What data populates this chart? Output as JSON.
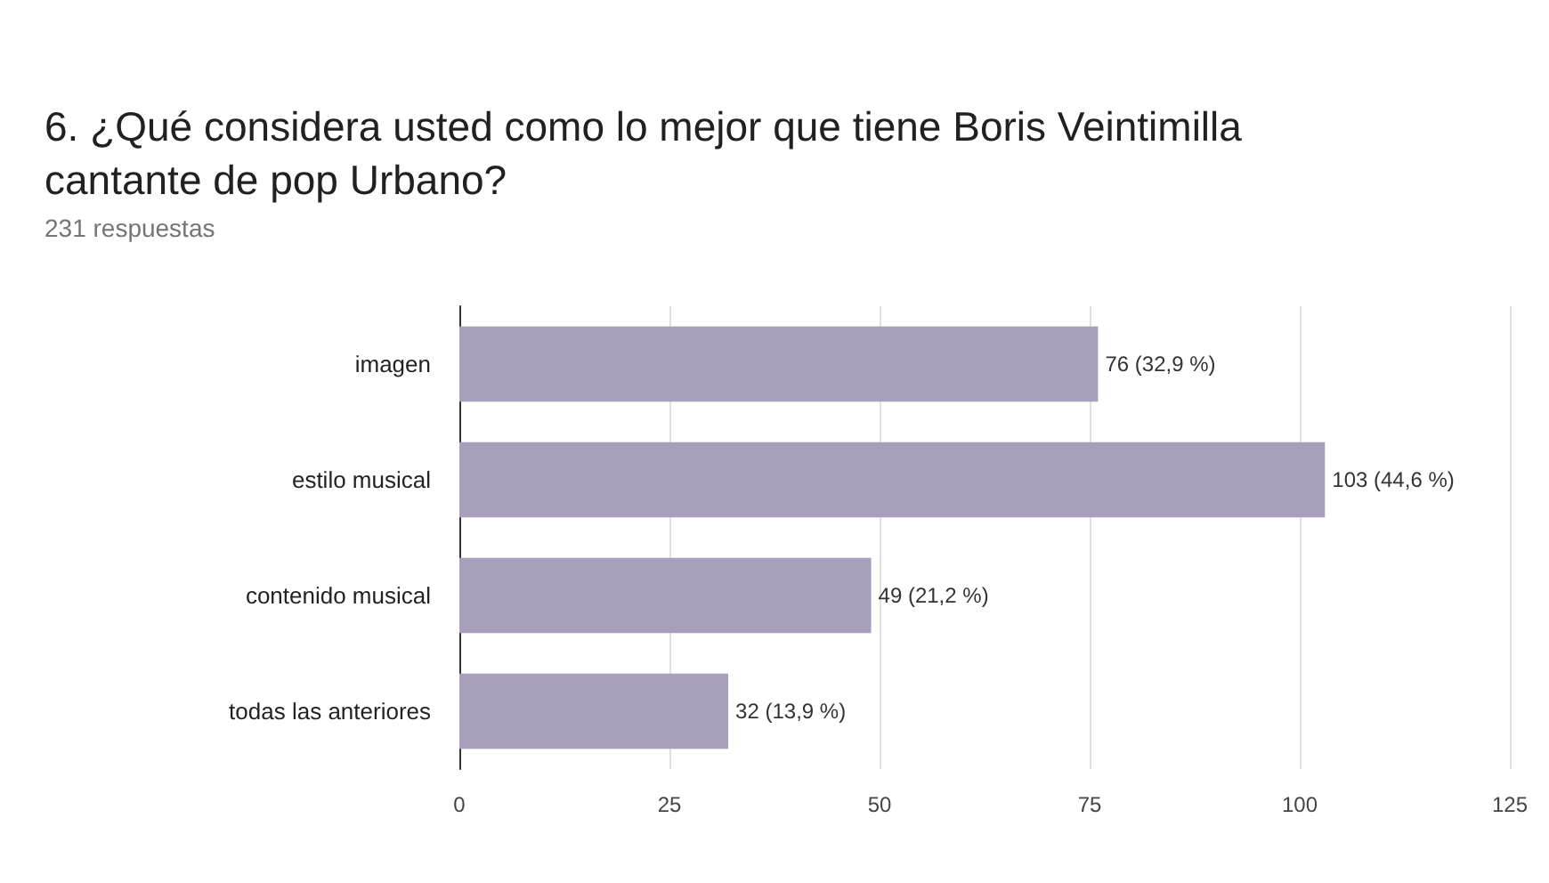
{
  "chart_data": {
    "type": "bar",
    "orientation": "horizontal",
    "title": "6. ¿Qué considera usted como lo mejor que tiene Boris Veintimilla cantante de pop Urbano?",
    "subtitle": "231 respuestas",
    "categories": [
      "imagen",
      "estilo musical",
      "contenido musical",
      "todas las anteriores"
    ],
    "values": [
      76,
      103,
      49,
      32
    ],
    "value_labels": [
      "76 (32,9 %)",
      "103 (44,6 %)",
      "49 (21,2 %)",
      "32 (13,9 %)"
    ],
    "color": "#a89fbb",
    "xlim": [
      0,
      125
    ],
    "xticks": [
      0,
      25,
      50,
      75,
      100,
      125
    ],
    "grid": "x"
  }
}
